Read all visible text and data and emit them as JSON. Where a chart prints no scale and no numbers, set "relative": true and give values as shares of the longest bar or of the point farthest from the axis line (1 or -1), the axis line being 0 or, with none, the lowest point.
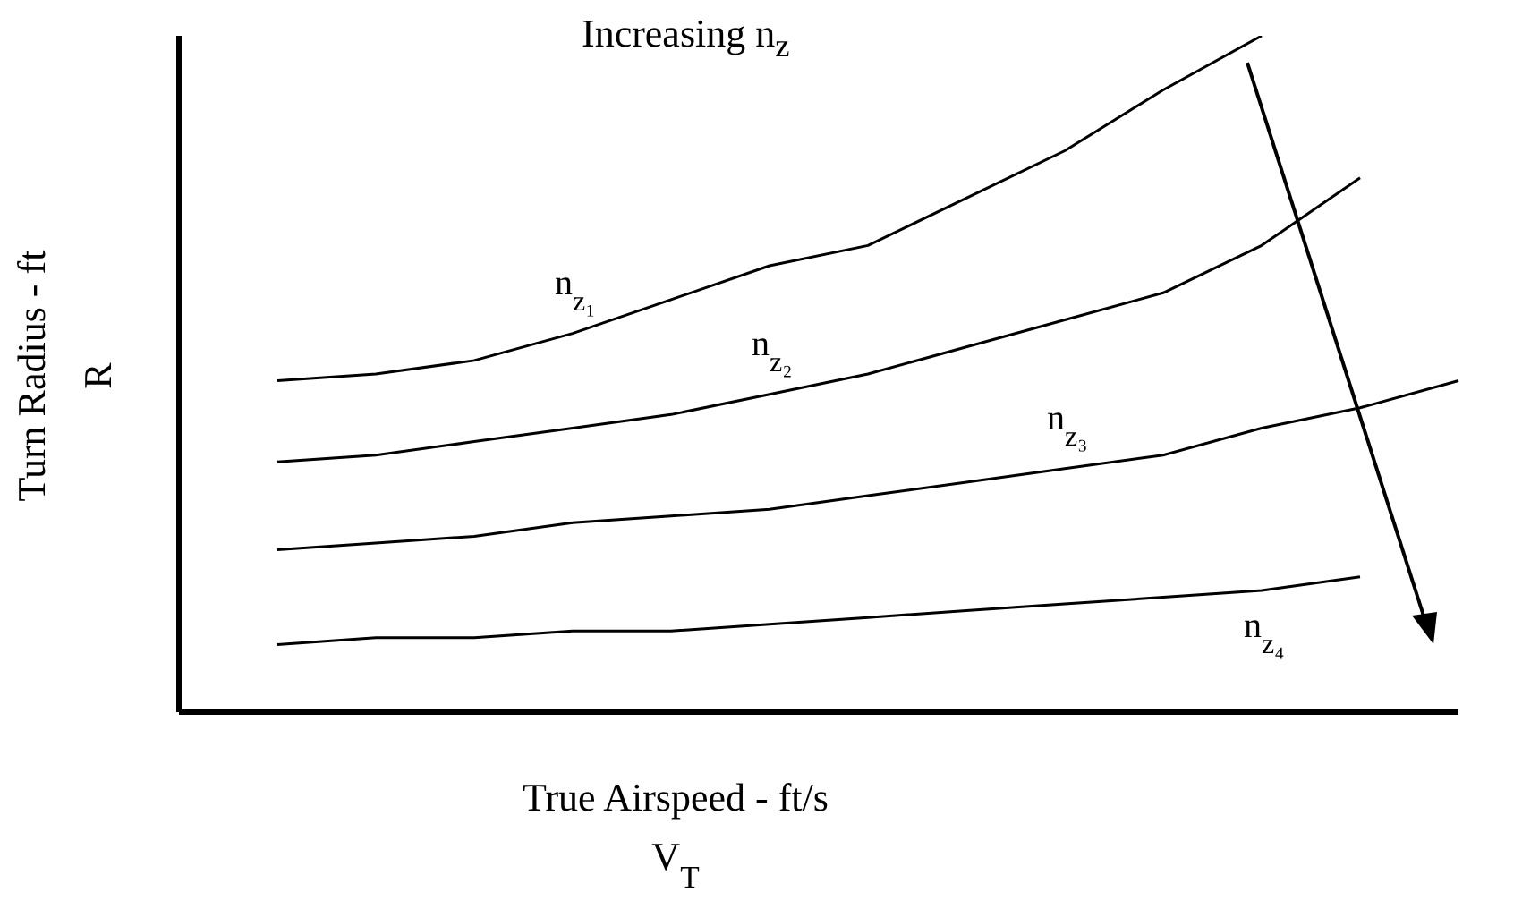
{
  "chart_data": {
    "type": "line",
    "relative": true,
    "xlabel": "True Airspeed - ft/s\nV$_{T}$",
    "ylabel": "Turn Radius - ft\nR",
    "categories": [
      null,
      null,
      null,
      null,
      null,
      null,
      null,
      null,
      null,
      null,
      null,
      null,
      null,
      null
    ],
    "marker": "none",
    "line_style": "solid",
    "series": [
      {
        "name": "n$_{z₁}$",
        "color": "#000000",
        "values": [
          null,
          0.49,
          0.5,
          0.52,
          0.56,
          0.61,
          0.66,
          0.69,
          0.76,
          0.83,
          0.92,
          1,
          null,
          null
        ]
      },
      {
        "name": "n$_{z₂}$",
        "color": "#000000",
        "values": [
          null,
          0.37,
          0.38,
          0.4,
          0.42,
          0.44,
          0.47,
          0.5,
          0.54,
          0.58,
          0.62,
          0.69,
          0.79,
          null
        ]
      },
      {
        "name": "n$_{z₃}$",
        "color": "#000000",
        "values": [
          null,
          0.24,
          0.25,
          0.26,
          0.28,
          0.29,
          0.3,
          0.32,
          0.34,
          0.36,
          0.38,
          0.42,
          0.45,
          0.49
        ]
      },
      {
        "name": "n$_{z₄}$",
        "color": "#000000",
        "values": [
          null,
          0.1,
          0.11,
          0.11,
          0.12,
          0.12,
          0.13,
          0.14,
          0.15,
          0.16,
          0.17,
          0.18,
          0.2,
          null
        ]
      }
    ],
    "annotations": [
      "Increasing n$_{z}$"
    ]
  }
}
